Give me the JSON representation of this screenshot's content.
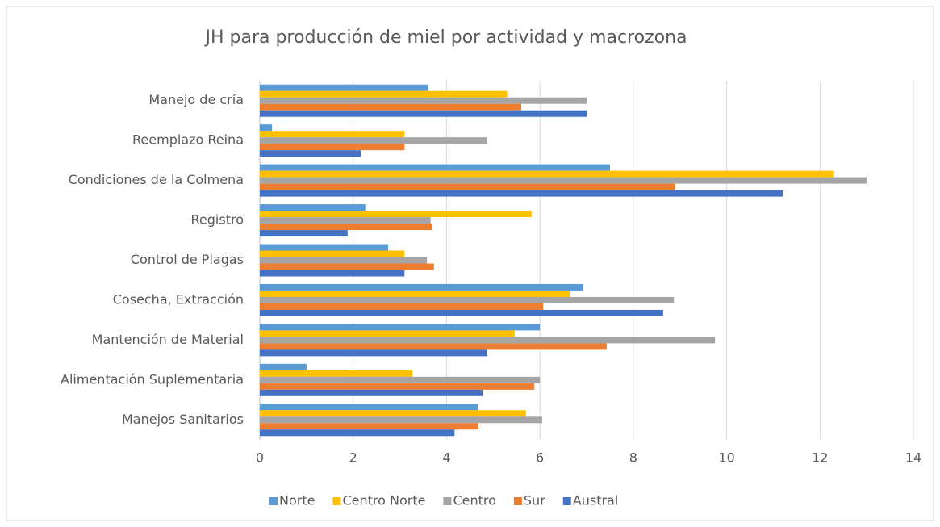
{
  "chart_data": {
    "type": "hbar",
    "title": "JH para producción de miel por actividad y macrozona",
    "categories": [
      "Manejo de cría",
      "Reemplazo Reina",
      "Condiciones de la Colmena",
      "Registro",
      "Control de Plagas",
      "Cosecha, Extracción",
      "Mantención de Material",
      "Alimentación Suplementaria",
      "Manejos Sanitarios"
    ],
    "series": [
      {
        "name": "Norte",
        "color": "#5b9bd5",
        "values": [
          3.61,
          0.26,
          7.5,
          2.26,
          2.75,
          6.93,
          6.0,
          1.0,
          4.67
        ]
      },
      {
        "name": "Centro Norte",
        "color": "#ffc000",
        "values": [
          5.3,
          3.1,
          12.3,
          5.82,
          3.1,
          6.64,
          5.46,
          3.27,
          5.7
        ]
      },
      {
        "name": "Centro",
        "color": "#a5a5a5",
        "values": [
          7.0,
          4.87,
          13.0,
          3.66,
          3.58,
          8.87,
          9.75,
          6.0,
          6.05
        ]
      },
      {
        "name": "Sur",
        "color": "#ed7d31",
        "values": [
          5.6,
          3.1,
          8.9,
          3.7,
          3.73,
          6.07,
          7.43,
          5.88,
          4.68
        ]
      },
      {
        "name": "Austral",
        "color": "#4472c4",
        "values": [
          7.0,
          2.16,
          11.2,
          1.88,
          3.1,
          8.64,
          4.87,
          4.77,
          4.17
        ]
      }
    ],
    "xlim": [
      0,
      14
    ],
    "xticks": [
      0,
      2,
      4,
      6,
      8,
      10,
      12,
      14
    ],
    "grid": true,
    "legend": "bottom"
  }
}
